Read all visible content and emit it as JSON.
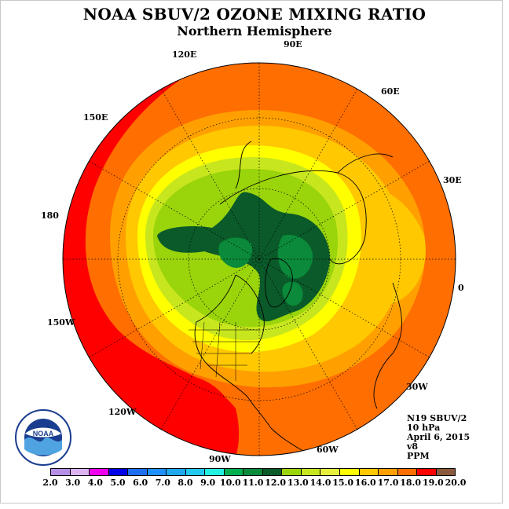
{
  "title": "NOAA SBUV/2 OZONE MIXING RATIO",
  "subtitle": "Northern Hemisphere",
  "longitudes": [
    "90E",
    "60E",
    "30E",
    "0",
    "30W",
    "60W",
    "90W",
    "120W",
    "150W",
    "180",
    "150E",
    "120E"
  ],
  "info": {
    "satellite": "N19 SBUV/2",
    "level": "10 hPa",
    "date": "April 6, 2015",
    "version": "v8",
    "units": "PPM"
  },
  "logo_text": "NOAA",
  "colorbar": {
    "ticks": [
      "2.0",
      "3.0",
      "4.0",
      "5.0",
      "6.0",
      "7.0",
      "8.0",
      "9.0",
      "10.0",
      "11.0",
      "12.0",
      "13.0",
      "14.0",
      "15.0",
      "16.0",
      "17.0",
      "18.0",
      "19.0",
      "20.0"
    ],
    "colors": [
      "#b68fe6",
      "#dbb3f0",
      "#ee00ee",
      "#0000e6",
      "#1e6ef0",
      "#1e90ff",
      "#1ea8f0",
      "#22c8f0",
      "#22f0e0",
      "#00b050",
      "#0a8a3a",
      "#0a5a2a",
      "#9ad40a",
      "#c8e61e",
      "#e6f03c",
      "#ffff00",
      "#ffc800",
      "#ffa000",
      "#ff6e00",
      "#ff0000",
      "#8b5a3c"
    ]
  },
  "map_colors": {
    "c18_19": "#ff0000",
    "c17_18": "#ff6e00",
    "c16_17": "#ffa000",
    "c15_16": "#ffc800",
    "c14_15": "#ffff00",
    "c13_14": "#c8e61e",
    "c12_13": "#9ad40a",
    "c11_12": "#0a8a3a",
    "c10_11": "#0a5a2a"
  }
}
